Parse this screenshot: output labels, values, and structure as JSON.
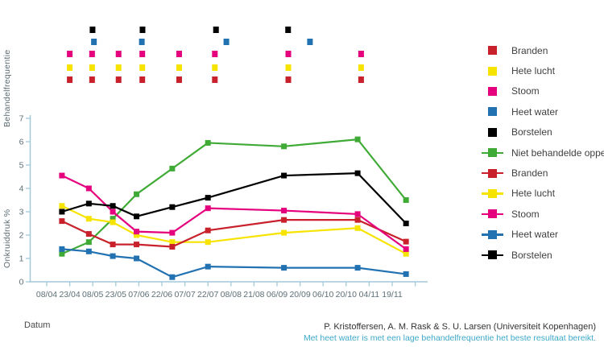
{
  "chart_data": {
    "type": "line",
    "title": "",
    "ylabel_top": "Behandelfrequentie",
    "ylabel_main": "Onkruiddruk %",
    "xlabel": "Datum",
    "x_tick_labels": [
      "08/04",
      "23/04",
      "08/05",
      "23/05",
      "07/06",
      "22/06",
      "07/07",
      "22/07",
      "08/08",
      "21/08",
      "06/09",
      "20/09",
      "06/10",
      "20/10",
      "04/11",
      "19/11"
    ],
    "y_tick_labels": [
      "0",
      "1",
      "2",
      "3",
      "4",
      "5",
      "6",
      "7"
    ],
    "ylim": [
      0,
      7
    ],
    "grid": "off",
    "legend_position": "right",
    "colors": {
      "branden": "#c8212b",
      "hete_lucht": "#f6e400",
      "stoom": "#e5007d",
      "heet_water": "#2272b2",
      "borstelen": "#000000",
      "niet_behandeld": "#3faa35",
      "axis": "#a3c9d9",
      "tick_text": "#5d6f77"
    },
    "x_indices": [
      0.66,
      1.83,
      2.87,
      3.9,
      5.45,
      7.0,
      10.3,
      13.5,
      15.6
    ],
    "series": [
      {
        "name": "Niet behandelde oppervlakte",
        "color": "niet_behandeld",
        "values": [
          1.2,
          1.7,
          2.7,
          3.75,
          4.85,
          5.95,
          5.8,
          6.1,
          3.5
        ]
      },
      {
        "name": "Hete lucht",
        "color": "hete_lucht",
        "values": [
          3.25,
          2.7,
          2.55,
          2.0,
          1.7,
          1.7,
          2.1,
          2.3,
          1.2
        ]
      },
      {
        "name": "Branden",
        "color": "branden",
        "values": [
          2.6,
          2.05,
          1.6,
          1.6,
          1.5,
          2.2,
          2.65,
          2.65,
          1.72
        ]
      },
      {
        "name": "Stoom",
        "color": "stoom",
        "values": [
          4.55,
          4.0,
          3.0,
          2.15,
          2.1,
          3.15,
          3.05,
          2.9,
          1.4
        ]
      },
      {
        "name": "Heet water",
        "color": "heet_water",
        "values": [
          1.4,
          1.3,
          1.1,
          1.0,
          0.2,
          0.65,
          0.6,
          0.6,
          0.33
        ]
      },
      {
        "name": "Borstelen",
        "color": "borstelen",
        "values": [
          3.0,
          3.35,
          3.25,
          2.8,
          3.2,
          3.6,
          4.55,
          4.65,
          2.5
        ]
      }
    ],
    "treatments": [
      {
        "name": "Borstelen",
        "color": "borstelen",
        "row": 0,
        "x_indices": [
          1.99,
          4.16,
          7.35,
          10.48
        ]
      },
      {
        "name": "Heet water",
        "color": "heet_water",
        "row": 1,
        "x_indices": [
          2.05,
          4.13,
          7.8,
          11.43
        ]
      },
      {
        "name": "Stoom",
        "color": "stoom",
        "row": 2,
        "x_indices": [
          1.0,
          1.97,
          3.12,
          4.15,
          5.75,
          7.3,
          10.49,
          13.65
        ]
      },
      {
        "name": "Hete lucht",
        "color": "hete_lucht",
        "row": 3,
        "x_indices": [
          1.0,
          1.97,
          3.12,
          4.15,
          5.75,
          7.3,
          10.49,
          13.65
        ]
      },
      {
        "name": "Branden",
        "color": "branden",
        "row": 4,
        "x_indices": [
          1.0,
          1.97,
          3.12,
          4.15,
          5.75,
          7.3,
          10.49,
          13.65
        ]
      }
    ],
    "legend": [
      {
        "label": "Branden",
        "color": "branden",
        "line": false
      },
      {
        "label": "Hete lucht",
        "color": "hete_lucht",
        "line": false
      },
      {
        "label": "Stoom",
        "color": "stoom",
        "line": false
      },
      {
        "label": "Heet water",
        "color": "heet_water",
        "line": false
      },
      {
        "label": "Borstelen",
        "color": "borstelen",
        "line": false
      },
      {
        "label": "Niet behandelde oppervlakte",
        "color": "niet_behandeld",
        "line": true
      },
      {
        "label": "Branden",
        "color": "branden",
        "line": true
      },
      {
        "label": "Hete lucht",
        "color": "hete_lucht",
        "line": true
      },
      {
        "label": "Stoom",
        "color": "stoom",
        "line": true
      },
      {
        "label": "Heet water",
        "color": "heet_water",
        "line": true
      },
      {
        "label": "Borstelen",
        "color": "borstelen",
        "line": true
      }
    ]
  },
  "footer": {
    "credit": "P. Kristoffersen, A. M. Rask & S. U. Larsen (Universiteit Kopenhagen)",
    "caption": "Met heet water is met een lage behandelfrequentie het beste resultaat bereikt."
  }
}
